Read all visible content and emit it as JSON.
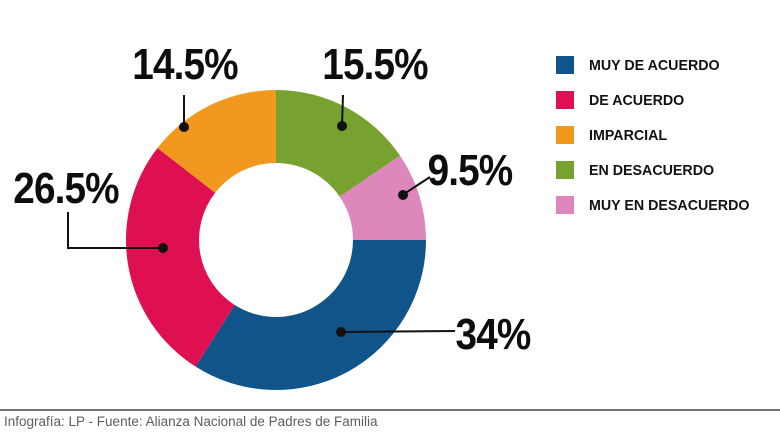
{
  "chart_data": {
    "type": "pie",
    "subtype": "donut",
    "title": "",
    "direction": "clockwise",
    "start_angle_deg_clockwise_from_top": 90,
    "inner_radius_ratio": 0.51,
    "legend_position": "right",
    "slices": [
      {
        "label": "MUY DE ACUERDO",
        "value": 34,
        "display": "34%",
        "color": "#10548A"
      },
      {
        "label": "DE ACUERDO",
        "value": 26.5,
        "display": "26.5%",
        "color": "#DE1052"
      },
      {
        "label": "IMPARCIAL",
        "value": 14.5,
        "display": "14.5%",
        "color": "#F2981F"
      },
      {
        "label": "EN DESACUERDO",
        "value": 15.5,
        "display": "15.5%",
        "color": "#78A22F"
      },
      {
        "label": "MUY EN DESACUERDO",
        "value": 9.5,
        "display": "9.5%",
        "color": "#DD87BD"
      }
    ]
  },
  "footer": {
    "credit": "Infografía: LP - Fuente: Alianza Nacional de Padres de Familia"
  }
}
